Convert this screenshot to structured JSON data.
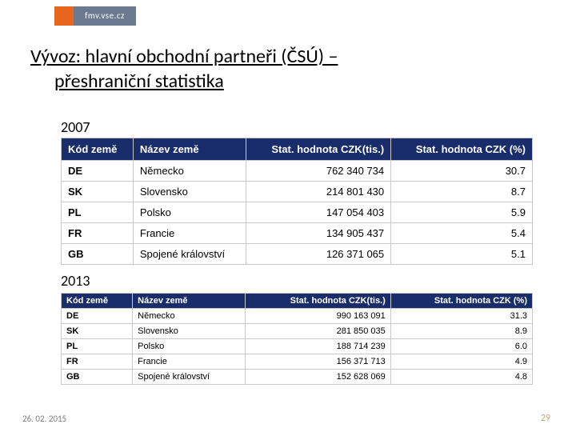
{
  "logo": {
    "text": "fmv.vse.cz"
  },
  "heading": {
    "line1": "Vývoz: hlavní obchodní partneři (ČSÚ) –",
    "line2": "přeshraniční statistika"
  },
  "columns": [
    "Kód země",
    "Název země",
    "Stat. hodnota CZK(tis.)",
    "Stat. hodnota CZK (%)"
  ],
  "table1": {
    "year": "2007",
    "rows": [
      [
        "DE",
        "Německo",
        "762 340 734",
        "30.7"
      ],
      [
        "SK",
        "Slovensko",
        "214 801 430",
        "8.7"
      ],
      [
        "PL",
        "Polsko",
        "147 054 403",
        "5.9"
      ],
      [
        "FR",
        "Francie",
        "134 905 437",
        "5.4"
      ],
      [
        "GB",
        "Spojené království",
        "126 371 065",
        "5.1"
      ]
    ]
  },
  "table2": {
    "year": "2013",
    "rows": [
      [
        "DE",
        "Německo",
        "990 163 091",
        "31.3"
      ],
      [
        "SK",
        "Slovensko",
        "281 850 035",
        "8.9"
      ],
      [
        "PL",
        "Polsko",
        "188 714 239",
        "6.0"
      ],
      [
        "FR",
        "Francie",
        "156 371 713",
        "4.9"
      ],
      [
        "GB",
        "Spojené království",
        "152 628 069",
        "4.8"
      ]
    ]
  },
  "footer": {
    "date": "26. 02. 2015",
    "page": "29"
  },
  "colors": {
    "header_bg": "#1a2d6b",
    "border": "#c9c9c9",
    "logo_orange": "#e8651f",
    "logo_gray": "#6b7a8f"
  }
}
